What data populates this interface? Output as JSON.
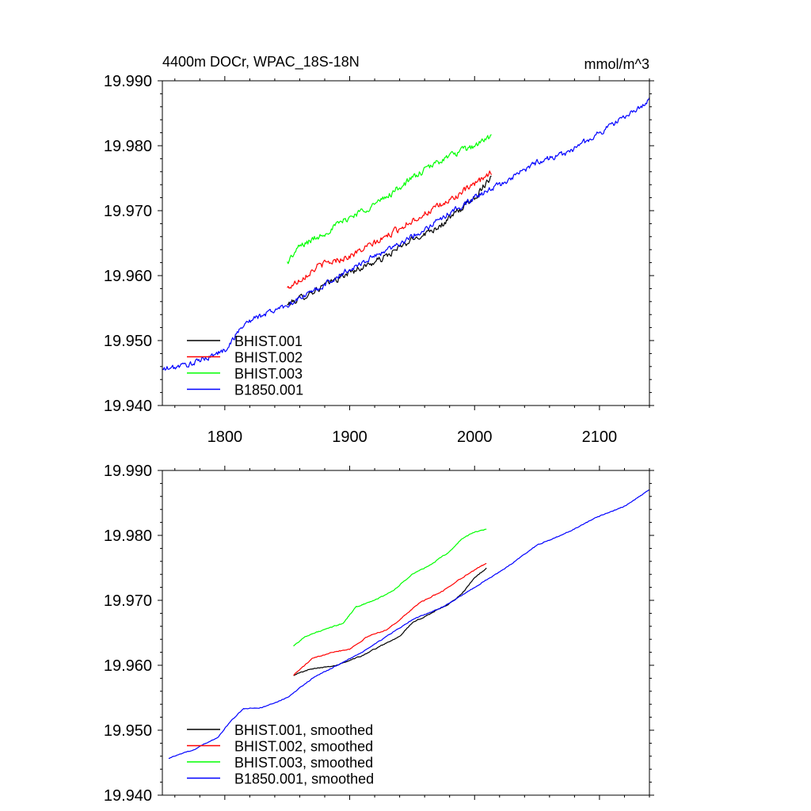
{
  "chart_data": [
    {
      "type": "line",
      "title": "4400m DOCr, WPAC_18S-18N",
      "units": "mmol/m^3",
      "xlabel": "",
      "ylabel": "",
      "xlim": [
        1750,
        2140
      ],
      "ylim": [
        19.94,
        19.99
      ],
      "x_ticks": [
        {
          "value": 1800,
          "label": "1800"
        },
        {
          "value": 1900,
          "label": "1900"
        },
        {
          "value": 2000,
          "label": "2000"
        },
        {
          "value": 2100,
          "label": "2100"
        }
      ],
      "y_ticks": [
        {
          "value": 19.94,
          "label": "19.940"
        },
        {
          "value": 19.95,
          "label": "19.950"
        },
        {
          "value": 19.96,
          "label": "19.960"
        },
        {
          "value": 19.97,
          "label": "19.970"
        },
        {
          "value": 19.98,
          "label": "19.980"
        },
        {
          "value": 19.99,
          "label": "19.990"
        }
      ],
      "legend_position": "bottom-left",
      "series": [
        {
          "name": "BHIST.001",
          "color": "#000000",
          "noise": 0.0008,
          "points": [
            [
              1850,
              19.9555
            ],
            [
              1875,
              19.958
            ],
            [
              1900,
              19.9605
            ],
            [
              1925,
              19.9625
            ],
            [
              1950,
              19.9655
            ],
            [
              1975,
              19.968
            ],
            [
              2000,
              19.972
            ],
            [
              2014,
              19.9755
            ]
          ]
        },
        {
          "name": "BHIST.002",
          "color": "#ff0000",
          "noise": 0.0008,
          "points": [
            [
              1850,
              19.958
            ],
            [
              1875,
              19.9615
            ],
            [
              1900,
              19.963
            ],
            [
              1925,
              19.9655
            ],
            [
              1950,
              19.9685
            ],
            [
              1975,
              19.971
            ],
            [
              2000,
              19.974
            ],
            [
              2014,
              19.976
            ]
          ]
        },
        {
          "name": "BHIST.003",
          "color": "#00ff00",
          "noise": 0.0008,
          "points": [
            [
              1850,
              19.962
            ],
            [
              1860,
              19.9645
            ],
            [
              1875,
              19.966
            ],
            [
              1900,
              19.969
            ],
            [
              1925,
              19.9715
            ],
            [
              1950,
              19.975
            ],
            [
              1975,
              19.978
            ],
            [
              2000,
              19.98
            ],
            [
              2014,
              19.9815
            ]
          ]
        },
        {
          "name": "B1850.001",
          "color": "#0000ff",
          "noise": 0.0007,
          "points": [
            [
              1750,
              19.9455
            ],
            [
              1775,
              19.9465
            ],
            [
              1800,
              19.9485
            ],
            [
              1815,
              19.9525
            ],
            [
              1825,
              19.9535
            ],
            [
              1850,
              19.9555
            ],
            [
              1875,
              19.958
            ],
            [
              1900,
              19.961
            ],
            [
              1925,
              19.9635
            ],
            [
              1950,
              19.966
            ],
            [
              1975,
              19.969
            ],
            [
              2000,
              19.972
            ],
            [
              2025,
              19.9745
            ],
            [
              2050,
              19.9775
            ],
            [
              2075,
              19.979
            ],
            [
              2100,
              19.982
            ],
            [
              2125,
              19.985
            ],
            [
              2140,
              19.987
            ]
          ]
        }
      ]
    },
    {
      "type": "line",
      "title": "",
      "xlabel": "",
      "ylabel": "",
      "xlim": [
        1750,
        2140
      ],
      "ylim": [
        19.94,
        19.99
      ],
      "x_ticks": [
        {
          "value": 1800,
          "label": ""
        },
        {
          "value": 1900,
          "label": ""
        },
        {
          "value": 2000,
          "label": ""
        },
        {
          "value": 2100,
          "label": ""
        }
      ],
      "y_ticks": [
        {
          "value": 19.94,
          "label": "19.940"
        },
        {
          "value": 19.95,
          "label": "19.950"
        },
        {
          "value": 19.96,
          "label": "19.960"
        },
        {
          "value": 19.97,
          "label": "19.970"
        },
        {
          "value": 19.98,
          "label": "19.980"
        },
        {
          "value": 19.99,
          "label": "19.990"
        }
      ],
      "legend_position": "bottom-left",
      "series": [
        {
          "name": "BHIST.001, smoothed",
          "color": "#000000",
          "noise": 0.00012,
          "points": [
            [
              1855,
              19.9585
            ],
            [
              1870,
              19.9595
            ],
            [
              1890,
              19.96
            ],
            [
              1910,
              19.9615
            ],
            [
              1925,
              19.963
            ],
            [
              1940,
              19.9645
            ],
            [
              1950,
              19.9665
            ],
            [
              1965,
              19.968
            ],
            [
              1980,
              19.9695
            ],
            [
              1990,
              19.971
            ],
            [
              2000,
              19.9735
            ],
            [
              2010,
              19.975
            ]
          ]
        },
        {
          "name": "BHIST.002, smoothed",
          "color": "#ff0000",
          "noise": 0.00012,
          "points": [
            [
              1855,
              19.9585
            ],
            [
              1870,
              19.961
            ],
            [
              1885,
              19.962
            ],
            [
              1900,
              19.9625
            ],
            [
              1915,
              19.9645
            ],
            [
              1930,
              19.9655
            ],
            [
              1940,
              19.967
            ],
            [
              1955,
              19.9695
            ],
            [
              1975,
              19.9715
            ],
            [
              1990,
              19.9735
            ],
            [
              2010,
              19.9758
            ]
          ]
        },
        {
          "name": "BHIST.003, smoothed",
          "color": "#00ff00",
          "noise": 0.00012,
          "points": [
            [
              1855,
              19.963
            ],
            [
              1865,
              19.9645
            ],
            [
              1880,
              19.9655
            ],
            [
              1895,
              19.9665
            ],
            [
              1905,
              19.969
            ],
            [
              1920,
              19.97
            ],
            [
              1935,
              19.9715
            ],
            [
              1950,
              19.974
            ],
            [
              1965,
              19.9755
            ],
            [
              1980,
              19.9775
            ],
            [
              1990,
              19.9795
            ],
            [
              2000,
              19.9805
            ],
            [
              2010,
              19.981
            ]
          ]
        },
        {
          "name": "B1850.001, smoothed",
          "color": "#0000ff",
          "noise": 0.0001,
          "points": [
            [
              1755,
              19.9457
            ],
            [
              1775,
              19.947
            ],
            [
              1795,
              19.949
            ],
            [
              1805,
              19.9515
            ],
            [
              1815,
              19.9533
            ],
            [
              1830,
              19.9535
            ],
            [
              1850,
              19.955
            ],
            [
              1870,
              19.958
            ],
            [
              1890,
              19.96
            ],
            [
              1910,
              19.962
            ],
            [
              1930,
              19.9645
            ],
            [
              1950,
              19.967
            ],
            [
              1975,
              19.969
            ],
            [
              2000,
              19.972
            ],
            [
              2025,
              19.975
            ],
            [
              2050,
              19.9785
            ],
            [
              2075,
              19.9805
            ],
            [
              2100,
              19.983
            ],
            [
              2120,
              19.9845
            ],
            [
              2140,
              19.987
            ]
          ]
        }
      ]
    }
  ]
}
